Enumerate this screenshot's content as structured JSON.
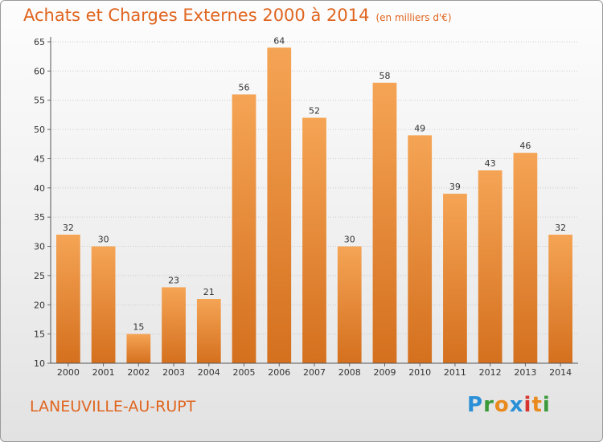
{
  "title": "Achats et Charges Externes 2000 à 2014",
  "subtitle": "(en milliers d'€)",
  "place_name": "LANEUVILLE-AU-RUPT",
  "logo": {
    "text": "Proxiti",
    "letters": [
      {
        "ch": "P",
        "color": "#2a8fd6"
      },
      {
        "ch": "r",
        "color": "#3a9a3a"
      },
      {
        "ch": "o",
        "color": "#e98a1e"
      },
      {
        "ch": "x",
        "color": "#2a8fd6"
      },
      {
        "ch": "i",
        "color": "#d7332f"
      },
      {
        "ch": "t",
        "color": "#e98a1e"
      },
      {
        "ch": "i",
        "color": "#3a9a3a"
      }
    ]
  },
  "colors": {
    "accent": "#e0651f",
    "bar_top": "#f5a455",
    "bar_bottom": "#d4701e",
    "grid": "#cccccc"
  },
  "chart_data": {
    "type": "bar",
    "title": "Achats et Charges Externes 2000 à 2014",
    "subtitle": "(en milliers d'€)",
    "categories": [
      "2000",
      "2001",
      "2002",
      "2003",
      "2004",
      "2005",
      "2006",
      "2007",
      "2008",
      "2009",
      "2010",
      "2011",
      "2012",
      "2013",
      "2014"
    ],
    "values": [
      32,
      30,
      15,
      23,
      21,
      56,
      64,
      52,
      30,
      58,
      49,
      39,
      43,
      46,
      32
    ],
    "ylim": [
      10,
      65
    ],
    "yticks": [
      10,
      15,
      20,
      25,
      30,
      35,
      40,
      45,
      50,
      55,
      60,
      65
    ],
    "grid": true,
    "legend": "none"
  }
}
